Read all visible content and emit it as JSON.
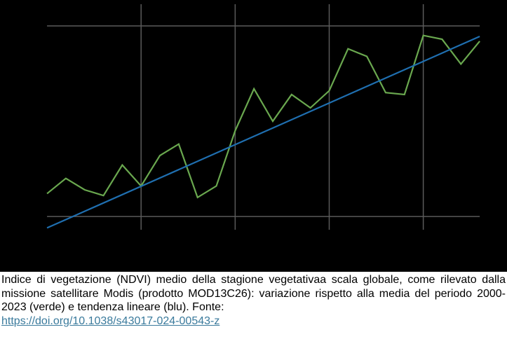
{
  "chart_data": {
    "type": "line",
    "xlim": [
      -2.5,
      24.45
    ],
    "ylim": [
      -29,
      113.6
    ],
    "xgrid": [
      5,
      10,
      15,
      20
    ],
    "ygrid": [
      0,
      100
    ],
    "series": [
      {
        "color": "#6aa84f",
        "x": [
          0,
          1,
          2,
          3,
          4,
          5,
          6,
          7,
          8,
          9,
          10,
          11,
          12,
          13,
          14,
          15,
          16,
          17,
          18,
          19,
          20,
          21,
          22,
          23
        ],
        "values": [
          12,
          20,
          14,
          11,
          27,
          16,
          32,
          38,
          10,
          16,
          45,
          67,
          50,
          64,
          57,
          66,
          88,
          84,
          65,
          64,
          95,
          93,
          80,
          92
        ]
      },
      {
        "color": "#1f6fb0",
        "x": [
          0,
          23
        ],
        "values": [
          -6,
          94.5
        ]
      }
    ]
  },
  "caption": {
    "text": "Indice di vegetazione (NDVI) medio della stagione vegetativaa scala globale, come rilevato dalla missione satellitare Modis (prodotto MOD13C26): variazione rispetto alla media del periodo 2000-2023 (verde) e tendenza lineare (blu). Fonte:",
    "link": "https://doi.org/10.1038/s43017-024-00543-z"
  }
}
